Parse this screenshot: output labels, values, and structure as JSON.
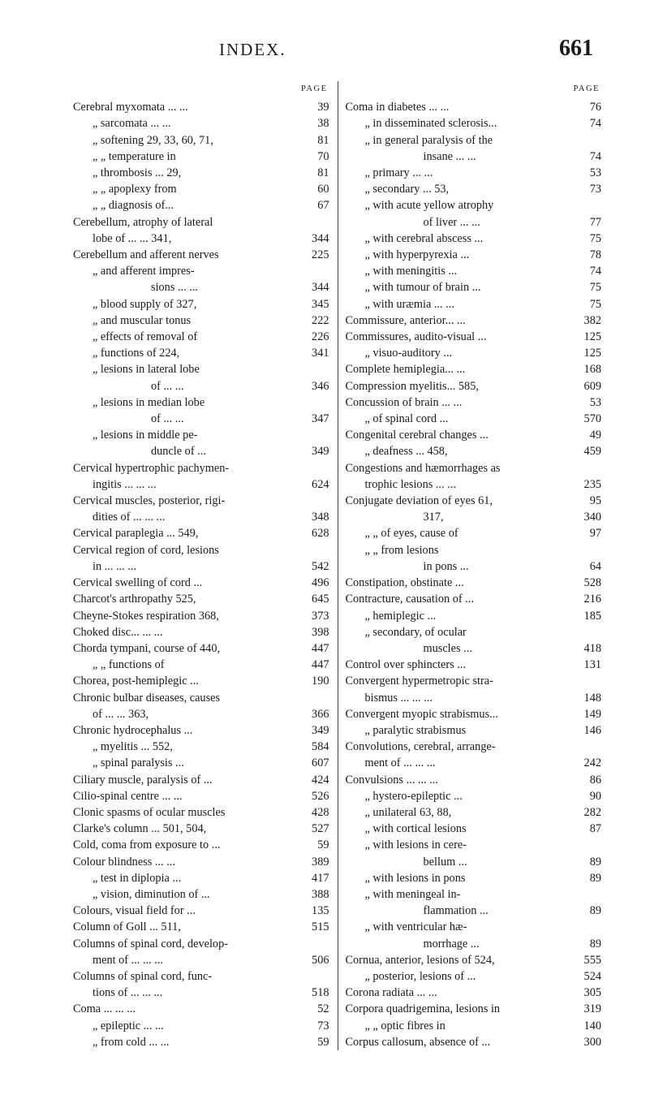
{
  "header": {
    "title": "INDEX.",
    "page": "661",
    "page_label": "PAGE"
  },
  "left": [
    {
      "cls": "ind1",
      "text": "Cerebral myxomata ...",
      "dots": true,
      "page": "39"
    },
    {
      "cls": "ind2",
      "text": "„ sarcomata ...",
      "dots": true,
      "page": "38"
    },
    {
      "cls": "ind2",
      "text": "„ softening 29, 33, 60, 71,",
      "page": "81"
    },
    {
      "cls": "ind2",
      "text": "„ „ temperature in",
      "page": "70"
    },
    {
      "cls": "ind2",
      "text": "„ thrombosis ... 29,",
      "page": "81"
    },
    {
      "cls": "ind2",
      "text": "„ „ apoplexy from",
      "page": "60"
    },
    {
      "cls": "ind2",
      "text": "„ „ diagnosis of...",
      "page": "67"
    },
    {
      "cls": "ind1",
      "text": "Cerebellum, atrophy of lateral",
      "page": ""
    },
    {
      "cls": "ind2",
      "text": "lobe of ... ... 341,",
      "page": "344"
    },
    {
      "cls": "ind1",
      "text": "Cerebellum and afferent nerves",
      "page": "225"
    },
    {
      "cls": "ind2",
      "text": "„ and afferent impres-",
      "page": ""
    },
    {
      "cls": "contline",
      "text": "sions ...",
      "dots": true,
      "page": "344"
    },
    {
      "cls": "ind2",
      "text": "„ blood supply of 327,",
      "page": "345"
    },
    {
      "cls": "ind2",
      "text": "„ and muscular tonus",
      "page": "222"
    },
    {
      "cls": "ind2",
      "text": "„ effects of removal of",
      "page": "226"
    },
    {
      "cls": "ind2",
      "text": "„ functions of 224,",
      "page": "341"
    },
    {
      "cls": "ind2",
      "text": "„ lesions in lateral lobe",
      "page": ""
    },
    {
      "cls": "contline",
      "text": "of ...",
      "dots": true,
      "page": "346"
    },
    {
      "cls": "ind2",
      "text": "„ lesions in median lobe",
      "page": ""
    },
    {
      "cls": "contline",
      "text": "of ...",
      "dots": true,
      "page": "347"
    },
    {
      "cls": "ind2",
      "text": "„ lesions in middle pe-",
      "page": ""
    },
    {
      "cls": "contline",
      "text": "duncle of",
      "dots": true,
      "page": "349"
    },
    {
      "cls": "ind1",
      "text": "Cervical hypertrophic pachymen-",
      "page": ""
    },
    {
      "cls": "ind2",
      "text": "ingitis ... ...",
      "dots": true,
      "page": "624"
    },
    {
      "cls": "ind1",
      "text": "Cervical muscles, posterior, rigi-",
      "page": ""
    },
    {
      "cls": "ind2",
      "text": "dities of ... ...",
      "dots": true,
      "page": "348"
    },
    {
      "cls": "ind1",
      "text": "Cervical paraplegia ... 549,",
      "page": "628"
    },
    {
      "cls": "ind1",
      "text": "Cervical region of cord, lesions",
      "page": ""
    },
    {
      "cls": "ind2",
      "text": "in ... ...",
      "dots": true,
      "page": "542"
    },
    {
      "cls": "ind1",
      "text": "Cervical swelling of cord",
      "dots": true,
      "page": "496"
    },
    {
      "cls": "ind1",
      "text": "Charcot's arthropathy 525,",
      "page": "645"
    },
    {
      "cls": "ind1",
      "text": "Cheyne-Stokes respiration 368,",
      "page": "373"
    },
    {
      "cls": "ind1",
      "text": "Choked disc... ...",
      "dots": true,
      "page": "398"
    },
    {
      "cls": "ind1",
      "text": "Chorda tympani, course of 440,",
      "page": "447"
    },
    {
      "cls": "ind2",
      "text": "„ „ functions of",
      "page": "447"
    },
    {
      "cls": "ind1",
      "text": "Chorea, post-hemiplegic",
      "dots": true,
      "page": "190"
    },
    {
      "cls": "ind1",
      "text": "Chronic bulbar diseases, causes",
      "page": ""
    },
    {
      "cls": "ind2",
      "text": "of ... ... 363,",
      "page": "366"
    },
    {
      "cls": "ind1",
      "text": "Chronic hydrocephalus",
      "dots": true,
      "page": "349"
    },
    {
      "cls": "ind2",
      "text": "„ myelitis ... 552,",
      "page": "584"
    },
    {
      "cls": "ind2",
      "text": "„ spinal paralysis",
      "dots": true,
      "page": "607"
    },
    {
      "cls": "ind1",
      "text": "Ciliary muscle, paralysis of",
      "dots": true,
      "page": "424"
    },
    {
      "cls": "ind1",
      "text": "Cilio-spinal centre ...",
      "dots": true,
      "page": "526"
    },
    {
      "cls": "ind1",
      "text": "Clonic spasms of ocular muscles",
      "page": "428"
    },
    {
      "cls": "ind1",
      "text": "Clarke's column ... 501, 504,",
      "page": "527"
    },
    {
      "cls": "ind1",
      "text": "Cold, coma from exposure to",
      "dots": true,
      "page": "59"
    },
    {
      "cls": "ind1",
      "text": "Colour blindness ...",
      "dots": true,
      "page": "389"
    },
    {
      "cls": "ind2",
      "text": "„ test in diplopia",
      "dots": true,
      "page": "417"
    },
    {
      "cls": "ind2",
      "text": "„ vision, diminution of",
      "dots": true,
      "page": "388"
    },
    {
      "cls": "ind1",
      "text": "Colours, visual field for",
      "dots": true,
      "page": "135"
    },
    {
      "cls": "ind1",
      "text": "Column of Goll ... 511,",
      "page": "515"
    },
    {
      "cls": "ind1",
      "text": "Columns of spinal cord, develop-",
      "page": ""
    },
    {
      "cls": "ind2",
      "text": "ment of ... ...",
      "dots": true,
      "page": "506"
    },
    {
      "cls": "ind1",
      "text": "Columns of spinal cord, func-",
      "page": ""
    },
    {
      "cls": "ind2",
      "text": "tions of ... ...",
      "dots": true,
      "page": "518"
    },
    {
      "cls": "ind1",
      "text": "Coma ... ...",
      "dots": true,
      "page": "52"
    },
    {
      "cls": "ind2",
      "text": "„ epileptic ...",
      "dots": true,
      "page": "73"
    },
    {
      "cls": "ind2",
      "text": "„ from cold ...",
      "dots": true,
      "page": "59"
    }
  ],
  "right": [
    {
      "cls": "ind1",
      "text": "Coma in diabetes ...",
      "dots": true,
      "page": "76"
    },
    {
      "cls": "ind2",
      "text": "„ in disseminated sclerosis...",
      "page": "74"
    },
    {
      "cls": "ind2",
      "text": "„ in general paralysis of the",
      "page": ""
    },
    {
      "cls": "contline",
      "text": "insane ...",
      "dots": true,
      "page": "74"
    },
    {
      "cls": "ind2",
      "text": "„ primary ...",
      "dots": true,
      "page": "53"
    },
    {
      "cls": "ind2",
      "text": "„ secondary ... 53,",
      "page": "73"
    },
    {
      "cls": "ind2",
      "text": "„ with acute yellow atrophy",
      "page": ""
    },
    {
      "cls": "contline",
      "text": "of liver ...",
      "dots": true,
      "page": "77"
    },
    {
      "cls": "ind2",
      "text": "„ with cerebral abscess",
      "dots": true,
      "page": "75"
    },
    {
      "cls": "ind2",
      "text": "„ with hyperpyrexia",
      "dots": true,
      "page": "78"
    },
    {
      "cls": "ind2",
      "text": "„ with meningitis",
      "dots": true,
      "page": "74"
    },
    {
      "cls": "ind2",
      "text": "„ with tumour of brain",
      "dots": true,
      "page": "75"
    },
    {
      "cls": "ind2",
      "text": "„ with uræmia ...",
      "dots": true,
      "page": "75"
    },
    {
      "cls": "ind1",
      "text": "Commissure, anterior...",
      "dots": true,
      "page": "382"
    },
    {
      "cls": "ind1",
      "text": "Commissures, audito-visual",
      "dots": true,
      "page": "125"
    },
    {
      "cls": "ind2",
      "text": "„ visuo-auditory",
      "dots": true,
      "page": "125"
    },
    {
      "cls": "ind1",
      "text": "Complete hemiplegia...",
      "dots": true,
      "page": "168"
    },
    {
      "cls": "ind1",
      "text": "Compression myelitis... 585,",
      "page": "609"
    },
    {
      "cls": "ind1",
      "text": "Concussion of brain ...",
      "dots": true,
      "page": "53"
    },
    {
      "cls": "ind2",
      "text": "„ of spinal cord",
      "dots": true,
      "page": "570"
    },
    {
      "cls": "ind1",
      "text": "Congenital cerebral changes",
      "dots": true,
      "page": "49"
    },
    {
      "cls": "ind2",
      "text": "„ deafness ... 458,",
      "page": "459"
    },
    {
      "cls": "ind1",
      "text": "Congestions and hæmorrhages as",
      "page": ""
    },
    {
      "cls": "ind2",
      "text": "trophic lesions ...",
      "dots": true,
      "page": "235"
    },
    {
      "cls": "ind1",
      "text": "Conjugate deviation of eyes 61,",
      "page": "95"
    },
    {
      "cls": "contline",
      "text": "317,",
      "page": "340"
    },
    {
      "cls": "ind2",
      "text": "„ „ of eyes, cause of",
      "page": "97"
    },
    {
      "cls": "ind2",
      "text": "„ „ from lesions",
      "page": ""
    },
    {
      "cls": "contline",
      "text": "in pons",
      "dots": true,
      "page": "64"
    },
    {
      "cls": "ind1",
      "text": "Constipation, obstinate",
      "dots": true,
      "page": "528"
    },
    {
      "cls": "ind1",
      "text": "Contracture, causation of",
      "dots": true,
      "page": "216"
    },
    {
      "cls": "ind2",
      "text": "„ hemiplegic",
      "dots": true,
      "page": "185"
    },
    {
      "cls": "ind2",
      "text": "„ secondary, of ocular",
      "page": ""
    },
    {
      "cls": "contline",
      "text": "muscles",
      "dots": true,
      "page": "418"
    },
    {
      "cls": "ind1",
      "text": "Control over sphincters",
      "dots": true,
      "page": "131"
    },
    {
      "cls": "ind1",
      "text": "Convergent hypermetropic stra-",
      "page": ""
    },
    {
      "cls": "ind2",
      "text": "bismus ... ...",
      "dots": true,
      "page": "148"
    },
    {
      "cls": "ind1",
      "text": "Convergent myopic strabismus...",
      "page": "149"
    },
    {
      "cls": "ind2",
      "text": "„ paralytic strabismus",
      "page": "146"
    },
    {
      "cls": "ind1",
      "text": "Convolutions, cerebral, arrange-",
      "page": ""
    },
    {
      "cls": "ind2",
      "text": "ment of ... ...",
      "dots": true,
      "page": "242"
    },
    {
      "cls": "ind1",
      "text": "Convulsions ... ...",
      "dots": true,
      "page": "86"
    },
    {
      "cls": "ind2",
      "text": "„ hystero-epileptic",
      "dots": true,
      "page": "90"
    },
    {
      "cls": "ind2",
      "text": "„ unilateral 63, 88,",
      "page": "282"
    },
    {
      "cls": "ind2",
      "text": "„ with cortical lesions",
      "page": "87"
    },
    {
      "cls": "ind2",
      "text": "„ with lesions in cere-",
      "page": ""
    },
    {
      "cls": "contline",
      "text": "bellum",
      "dots": true,
      "page": "89"
    },
    {
      "cls": "ind2",
      "text": "„ with lesions in pons",
      "page": "89"
    },
    {
      "cls": "ind2",
      "text": "„ with meningeal in-",
      "page": ""
    },
    {
      "cls": "contline",
      "text": "flammation",
      "dots": true,
      "page": "89"
    },
    {
      "cls": "ind2",
      "text": "„ with ventricular hæ-",
      "page": ""
    },
    {
      "cls": "contline",
      "text": "morrhage",
      "dots": true,
      "page": "89"
    },
    {
      "cls": "ind1",
      "text": "Cornua, anterior, lesions of 524,",
      "page": "555"
    },
    {
      "cls": "ind2",
      "text": "„ posterior, lesions of",
      "dots": true,
      "page": "524"
    },
    {
      "cls": "ind1",
      "text": "Corona radiata ...",
      "dots": true,
      "page": "305"
    },
    {
      "cls": "ind1",
      "text": "Corpora quadrigemina, lesions in",
      "page": "319"
    },
    {
      "cls": "ind2",
      "text": "„ „ optic fibres in",
      "page": "140"
    },
    {
      "cls": "ind1",
      "text": "Corpus callosum, absence of",
      "dots": true,
      "page": "300"
    }
  ]
}
